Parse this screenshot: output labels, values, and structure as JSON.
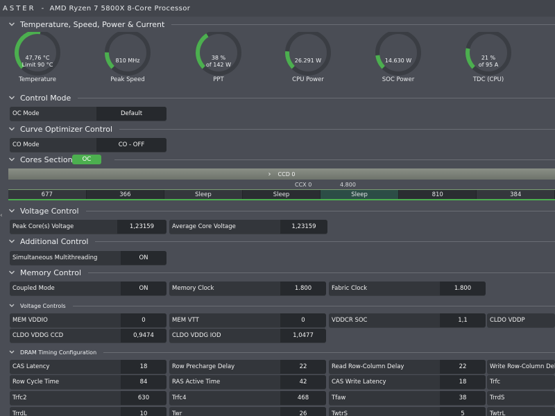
{
  "window": {
    "app_name": "ASTER",
    "separator": "-",
    "processor": "AMD Ryzen 7 5800X 8-Core Processor"
  },
  "sections": {
    "temperature": "Temperature, Speed, Power & Current",
    "control_mode": "Control Mode",
    "curve_optimizer": "Curve Optimizer Control",
    "cores": "Cores Section",
    "voltage_control": "Voltage Control",
    "additional_control": "Additional Control",
    "memory_control": "Memory Control",
    "voltage_controls": "Voltage Controls",
    "dram_timing": "DRAM Timing Configuration"
  },
  "gauges": [
    {
      "line1": "47,76 °C",
      "line2": "Limit 90 °C",
      "name": "Temperature",
      "fill": 0.53
    },
    {
      "line1": "810  MHz",
      "line2": "",
      "name": "Peak Speed",
      "fill": 0.17
    },
    {
      "line1": "38 %",
      "line2": "of 142 W",
      "name": "PPT",
      "fill": 0.38
    },
    {
      "line1": "26.291 W",
      "line2": "",
      "name": "CPU Power",
      "fill": 0.18
    },
    {
      "line1": "14.630 W",
      "line2": "",
      "name": "SOC Power",
      "fill": 0.14
    },
    {
      "line1": "21 %",
      "line2": "of 95 A",
      "name": "TDC (CPU)",
      "fill": 0.21
    }
  ],
  "control_mode": {
    "label": "OC Mode",
    "value": "Default"
  },
  "curve_optimizer": {
    "label": "CO Mode",
    "value": "CO - OFF"
  },
  "cores_section": {
    "badge": "OC",
    "ccd_label": "CCD 0",
    "ccd_arrow": "›",
    "ccx_label": "CCX 0",
    "ccx_value": "4.800",
    "cores": [
      "677",
      "366",
      "Sleep",
      "Sleep",
      "Sleep",
      "810",
      "384"
    ]
  },
  "voltage_control": {
    "peak_label": "Peak Core(s) Voltage",
    "peak_value": "1,23159",
    "avg_label": "Average Core Voltage",
    "avg_value": "1,23159"
  },
  "additional_control": {
    "smt_label": "Simultaneous Multithreading",
    "smt_value": "ON"
  },
  "memory_control": {
    "coupled_label": "Coupled Mode",
    "coupled_value": "ON",
    "memclk_label": "Memory Clock",
    "memclk_value": "1.800",
    "fclk_label": "Fabric Clock",
    "fclk_value": "1.800"
  },
  "voltage_controls": {
    "vddio_label": "MEM VDDIO",
    "vddio_value": "0",
    "vtt_label": "MEM VTT",
    "vtt_value": "0",
    "vddcr_label": "VDDCR SOC",
    "vddcr_value": "1,1",
    "vddp_label": "CLDO VDDP",
    "ccd_label": "CLDO VDDG CCD",
    "ccd_value": "0,9474",
    "iod_label": "CLDO VDDG IOD",
    "iod_value": "1,0477"
  },
  "dram": {
    "cas_label": "CAS Latency",
    "cas_value": "18",
    "rp_label": "Row Precharge Delay",
    "rp_value": "22",
    "rcdr_label": "Read Row-Column Delay",
    "rcdr_value": "22",
    "rcdw_label": "Write Row-Column Dela",
    "rc_label": "Row Cycle Time",
    "rc_value": "84",
    "ras_label": "RAS Active Time",
    "ras_value": "42",
    "cwl_label": "CAS Write Latency",
    "cwl_value": "18",
    "trfc_label": "Trfc",
    "trfc2_label": "Trfc2",
    "trfc2_value": "630",
    "trfc4_label": "Trfc4",
    "trfc4_value": "468",
    "tfaw_label": "Tfaw",
    "tfaw_value": "38",
    "trrds_label": "TrrdS",
    "trrdl_label": "TrrdL",
    "trrdl_value": "10",
    "twr_label": "Twr",
    "twr_value": "26",
    "twtrs_label": "TwtrS",
    "twtrs_value": "5",
    "twtrl_label": "TwtrL"
  },
  "colors": {
    "accent": "#4caf4f",
    "background": "#4a4d55",
    "gauge_track": "#3a3d43"
  },
  "left_edge_glyph": "‹"
}
